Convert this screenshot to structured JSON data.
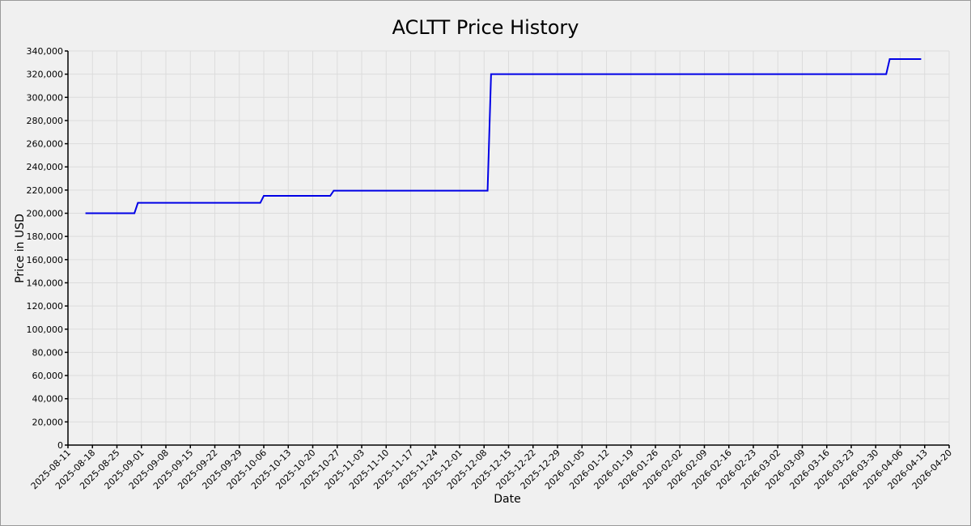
{
  "chart_data": {
    "type": "line",
    "title": "ACLTT Price History",
    "x_label": "Date",
    "y_label": "Price in USD",
    "x": [
      "2025-08-16",
      "2025-08-30",
      "2025-08-31",
      "2025-10-05",
      "2025-10-06",
      "2025-10-25",
      "2025-10-26",
      "2025-12-09",
      "2025-12-10",
      "2026-04-02",
      "2026-04-03",
      "2026-04-12"
    ],
    "values": [
      200000,
      200000,
      209000,
      209000,
      215000,
      215000,
      219500,
      219500,
      320000,
      320000,
      333000,
      333000
    ],
    "color": "#0000e6",
    "xlim": [
      "2025-08-11",
      "2026-04-20"
    ],
    "xticks": [
      "2025-08-11",
      "2025-08-18",
      "2025-08-25",
      "2025-09-01",
      "2025-09-08",
      "2025-09-15",
      "2025-09-22",
      "2025-09-29",
      "2025-10-06",
      "2025-10-13",
      "2025-10-20",
      "2025-10-27",
      "2025-11-03",
      "2025-11-10",
      "2025-11-17",
      "2025-11-24",
      "2025-12-01",
      "2025-12-08",
      "2025-12-15",
      "2025-12-22",
      "2025-12-29",
      "2026-01-05",
      "2026-01-12",
      "2026-01-19",
      "2026-01-26",
      "2026-02-02",
      "2026-02-09",
      "2026-02-16",
      "2026-02-23",
      "2026-03-02",
      "2026-03-09",
      "2026-03-16",
      "2026-03-23",
      "2026-03-30",
      "2026-04-06",
      "2026-04-13",
      "2026-04-20"
    ],
    "ylim": [
      0,
      340000
    ],
    "yticks": [
      0,
      {
        "value": 20000,
        "label": "20,000"
      },
      {
        "value": 40000,
        "label": "40,000"
      },
      {
        "value": 60000,
        "label": "60,000"
      },
      {
        "value": 80000,
        "label": "80,000"
      },
      {
        "value": 100000,
        "label": "100,000"
      },
      {
        "value": 120000,
        "label": "120,000"
      },
      {
        "value": 140000,
        "label": "140,000"
      },
      {
        "value": 160000,
        "label": "160,000"
      },
      {
        "value": 180000,
        "label": "180,000"
      },
      {
        "value": 200000,
        "label": "200,000"
      },
      {
        "value": 220000,
        "label": "220,000"
      },
      {
        "value": 240000,
        "label": "240,000"
      },
      {
        "value": 260000,
        "label": "260,000"
      },
      {
        "value": 280000,
        "label": "280,000"
      },
      {
        "value": 300000,
        "label": "300,000"
      },
      {
        "value": 320000,
        "label": "320,000"
      },
      {
        "value": 340000,
        "label": "340,000"
      }
    ],
    "grid": true
  }
}
